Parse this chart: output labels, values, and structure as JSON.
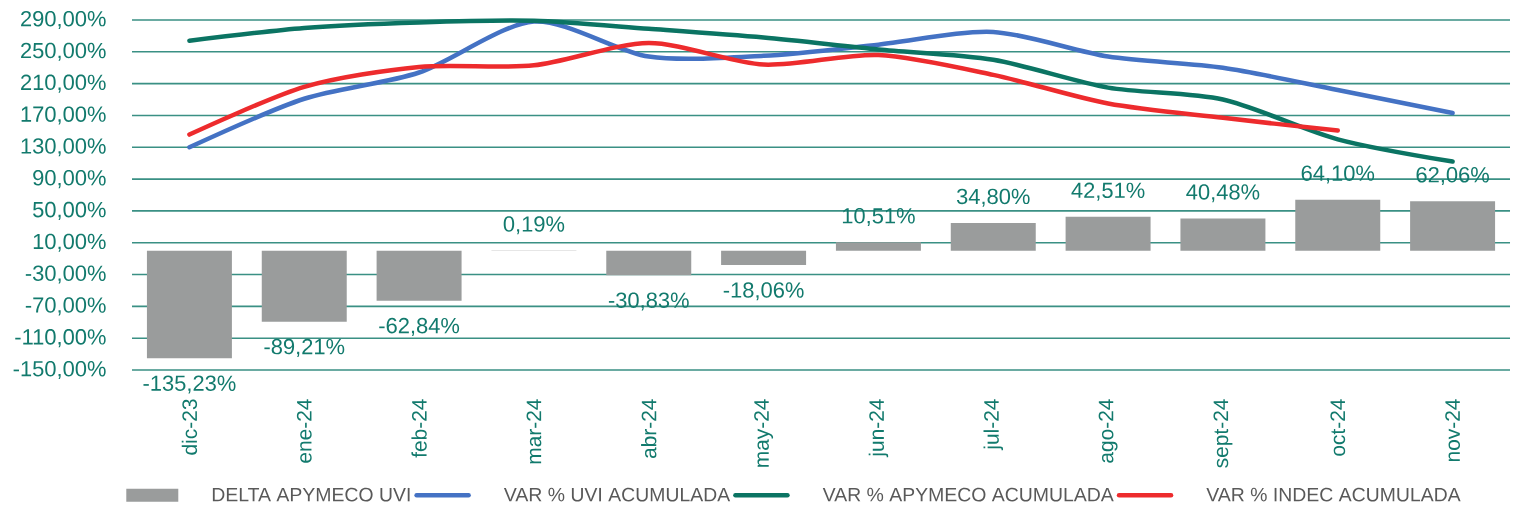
{
  "chart_data": {
    "type": "bar",
    "categories": [
      "dic-23",
      "ene-24",
      "feb-24",
      "mar-24",
      "abr-24",
      "may-24",
      "jun-24",
      "jul-24",
      "ago-24",
      "sept-24",
      "oct-24",
      "nov-24"
    ],
    "series": [
      {
        "name": "DELTA APYMECO UVI",
        "color": "#9a9c9c",
        "values": [
          -135.23,
          -89.21,
          -62.84,
          0.19,
          -30.83,
          -18.06,
          10.51,
          34.8,
          42.51,
          40.48,
          64.1,
          62.06
        ],
        "value_labels": [
          "-135,23%",
          "-89,21%",
          "-62,84%",
          "0,19%",
          "-30,83%",
          "-18,06%",
          "10,51%",
          "34,80%",
          "42,51%",
          "40,48%",
          "64,10%",
          "62,06%"
        ]
      },
      {
        "name": "VAR % UVI ACUMULADA",
        "type": "line",
        "color": "#4472c4",
        "values": [
          130,
          191,
          224,
          288,
          244,
          245,
          259,
          275,
          244,
          230,
          202,
          173
        ]
      },
      {
        "name": "VAR % APYMECO ACUMULADA",
        "type": "line",
        "color": "#0b7463",
        "values": [
          264,
          280,
          287,
          289,
          279,
          268,
          253,
          240,
          205,
          190,
          140,
          112
        ]
      },
      {
        "name": "VAR % INDEC ACUMULADA",
        "type": "line",
        "color": "#ed2b2d",
        "values": [
          146,
          206,
          231,
          233,
          261,
          234,
          246,
          221,
          185,
          167,
          151,
          null
        ]
      }
    ],
    "ylim": [
      -150,
      290
    ],
    "yticks": [
      {
        "value": -150,
        "label": "-150,00%"
      },
      {
        "value": -110,
        "label": "-110,00%"
      },
      {
        "value": -70,
        "label": "-70,00%"
      },
      {
        "value": -30,
        "label": "-30,00%"
      },
      {
        "value": 10,
        "label": "10,00%"
      },
      {
        "value": 50,
        "label": "50,00%"
      },
      {
        "value": 90,
        "label": "90,00%"
      },
      {
        "value": 130,
        "label": "130,00%"
      },
      {
        "value": 170,
        "label": "170,00%"
      },
      {
        "value": 210,
        "label": "210,00%"
      },
      {
        "value": 250,
        "label": "250,00%"
      },
      {
        "value": 290,
        "label": "290,00%"
      }
    ],
    "grid": "y",
    "legend": "bottom",
    "line_style": "solid"
  }
}
